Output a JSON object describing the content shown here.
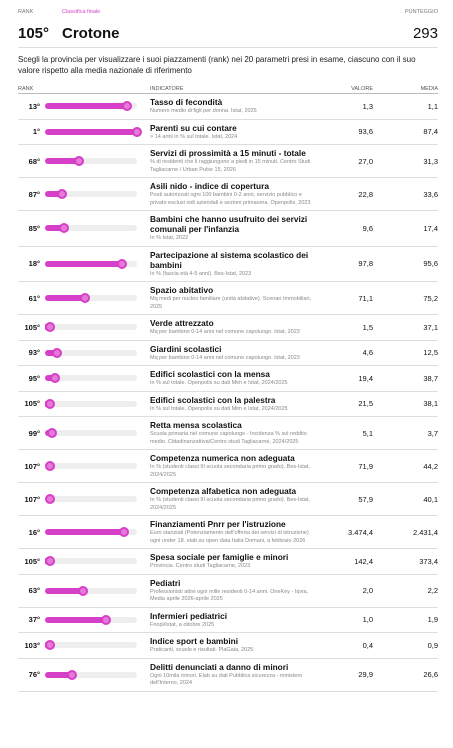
{
  "header": {
    "rank_label": "RANK",
    "section": "Classifica finale",
    "score_label": "PUNTEGGIO",
    "rank": "105°",
    "province": "Crotone",
    "score": "293"
  },
  "description": "Scegli la provincia per visualizzare i suoi piazzamenti (rank) nei 20 parametri presi in esame, ciascuno con il suo valore rispetto alla media nazionale di riferimento",
  "table": {
    "columns": [
      "RANK",
      "INDICATORE",
      "VALORE",
      "MEDIA"
    ],
    "rows": [
      {
        "rank": {
          "value": 13,
          "label": "13°"
        },
        "title": "Tasso di fecondità",
        "source": "Numero medio di figli per donna. Istat, 2025",
        "value": "1,3",
        "average": "1,1"
      },
      {
        "rank": {
          "value": 1,
          "label": "1°"
        },
        "title": "Parenti su cui contare",
        "source": "> 14 anni in % sul totale. Istat, 2024",
        "value": "93,6",
        "average": "87,4"
      },
      {
        "rank": {
          "value": 68,
          "label": "68°"
        },
        "title": "Servizi di prossimità a 15 minuti - totale",
        "source": "% di residenti che li raggiungono a piedi in 15 minuti. Centro Studi Tagliacarne / Urban Pulse 15, 2026",
        "value": "27,0",
        "average": "31,3"
      },
      {
        "rank": {
          "value": 87,
          "label": "87°"
        },
        "title": "Asili nido - indice di copertura",
        "source": "Posti autorizzati ogni 100 bambini 0-2 anni, servizio pubblico e privato esclusi nidi aziendali e sezioni primavera. Openpolis, 2023",
        "value": "22,8",
        "average": "33,6"
      },
      {
        "rank": {
          "value": 85,
          "label": "85°"
        },
        "title": "Bambini che hanno usufruito dei servizi comunali per l'infanzia",
        "source": "In % Istat, 2022",
        "value": "9,6",
        "average": "17,4"
      },
      {
        "rank": {
          "value": 18,
          "label": "18°"
        },
        "title": "Partecipazione al sistema scolastico dei bambini",
        "source": "In % (fascia età 4-5 anni). Bes-Istat, 2023",
        "value": "97,8",
        "average": "95,6"
      },
      {
        "rank": {
          "value": 61,
          "label": "61°"
        },
        "title": "Spazio abitativo",
        "source": "Mq medi per nucleo familiare (unità abitative). Scenari Immobiliari, 2025",
        "value": "71,1",
        "average": "75,2"
      },
      {
        "rank": {
          "value": 105,
          "label": "105°"
        },
        "title": "Verde attrezzato",
        "source": "Mq per bambino 0-14 anni nel comune capoluogo. Istat, 2023",
        "value": "1,5",
        "average": "37,1"
      },
      {
        "rank": {
          "value": 93,
          "label": "93°"
        },
        "title": "Giardini scolastici",
        "source": "Mq per bambino 0-14 anni nel comune capoluogo. Istat, 2023",
        "value": "4,6",
        "average": "12,5"
      },
      {
        "rank": {
          "value": 95,
          "label": "95°"
        },
        "title": "Edifici scolastici con la mensa",
        "source": "In % sul totale. Openpolis su dati Mim e Istat, 2024/2025",
        "value": "19,4",
        "average": "38,7"
      },
      {
        "rank": {
          "value": 105,
          "label": "105°"
        },
        "title": "Edifici scolastici con la palestra",
        "source": "In % sul totale. Openpolis su dati Mim e Istat, 2024/2025",
        "value": "21,5",
        "average": "38,1"
      },
      {
        "rank": {
          "value": 99,
          "label": "99°"
        },
        "title": "Retta mensa scolastica",
        "source": "Scuola primaria nel comune capoluogo - Incidenza % sul reddito medio. Cittadinanzattiva/Centro studi Tagliacarne, 2024/2025",
        "value": "5,1",
        "average": "3,7"
      },
      {
        "rank": {
          "value": 107,
          "label": "107°"
        },
        "title": "Competenza numerica non adeguata",
        "source": "In % (studenti classi III scuola secondaria primo grado). Bes-Istat, 2024/2025",
        "value": "71,9",
        "average": "44,2"
      },
      {
        "rank": {
          "value": 107,
          "label": "107°"
        },
        "title": "Competenza alfabetica non adeguata",
        "source": "In % (studenti classi III scuola secondaria primo grado). Bes-Istat, 2024/2025",
        "value": "57,9",
        "average": "40,1"
      },
      {
        "rank": {
          "value": 16,
          "label": "16°"
        },
        "title": "Finanziamenti Pnrr per l'istruzione",
        "source": "Euro stanziati (Potenziamento dell'offerta dei servizi di istruzione) ogni under 18. elab.su open data Italia Domani, a febbraio 2026",
        "value": "3.474,4",
        "average": "2.431,4"
      },
      {
        "rank": {
          "value": 105,
          "label": "105°"
        },
        "title": "Spesa sociale per famiglie e minori",
        "source": "Provincia. Centro studi Tagliacarne, 2023",
        "value": "142,4",
        "average": "373,4"
      },
      {
        "rank": {
          "value": 63,
          "label": "63°"
        },
        "title": "Pediatri",
        "source": "Professionisti attivi ogni mille residenti 0-14 anni. OneKey - Iqvia, Media aprile 2026-aprile 2025",
        "value": "2,0",
        "average": "2,2"
      },
      {
        "rank": {
          "value": 37,
          "label": "37°"
        },
        "title": "Infermieri pediatrici",
        "source": "Fnopi/Istat, a ottobre 2025",
        "value": "1,0",
        "average": "1,9"
      },
      {
        "rank": {
          "value": 103,
          "label": "103°"
        },
        "title": "Indice sport e bambini",
        "source": "Praticanti, scuole e risultati. PlaGaia, 2025",
        "value": "0,4",
        "average": "0,9"
      },
      {
        "rank": {
          "value": 76,
          "label": "76°"
        },
        "title": "Delitti denunciati a danno di minori",
        "source": "Ogni 10mila minori. Elab su dati Pubblica sicurezza - ministero dell'Interno, 2024",
        "value": "29,9",
        "average": "26,6"
      }
    ]
  }
}
